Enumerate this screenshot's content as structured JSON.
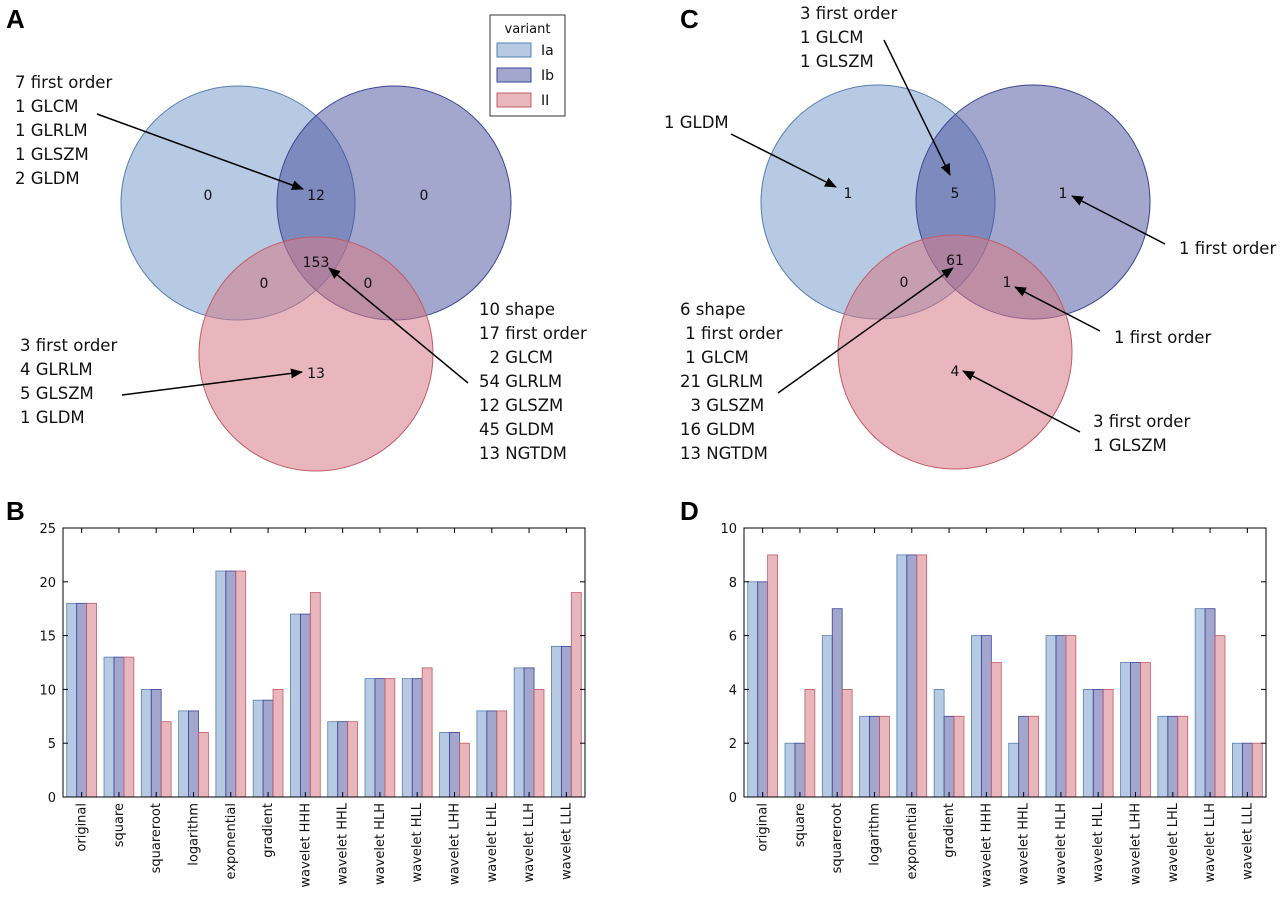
{
  "colors": {
    "Ia": "#7b9fcc",
    "Ib": "#3e4596",
    "II": "#d67a85"
  },
  "legend": {
    "title": "variant",
    "items": [
      "Ia",
      "Ib",
      "II"
    ]
  },
  "venn_A": {
    "letter": "A",
    "counts": {
      "Ia_only": "0",
      "Ib_only": "0",
      "Ia_Ib": "12",
      "Ia_II": "0",
      "Ib_II": "0",
      "all": "153",
      "II_only": "13"
    },
    "annotations": {
      "Ia_Ib": [
        "7 first order",
        "1 GLCM",
        "1 GLRLM",
        "1 GLSZM",
        "2 GLDM"
      ],
      "II_only": [
        "3 first order",
        "4 GLRLM",
        "5 GLSZM",
        "1 GLDM"
      ],
      "all": [
        "10 shape",
        "17 first order",
        "  2 GLCM",
        "54 GLRLM",
        "12 GLSZM",
        "45 GLDM",
        "13 NGTDM"
      ]
    }
  },
  "venn_C": {
    "letter": "C",
    "counts": {
      "Ia_only": "1",
      "Ib_only": "1",
      "Ia_Ib": "5",
      "Ia_II": "0",
      "Ib_II": "1",
      "all": "61",
      "II_only": "4"
    },
    "annotations": {
      "Ia_Ib": [
        "3 first order",
        "1 GLCM",
        "1 GLSZM"
      ],
      "Ia_only": [
        "1 GLDM"
      ],
      "Ib_only": [
        "1 first order"
      ],
      "Ib_II": [
        "1 first order"
      ],
      "II_only": [
        "3 first order",
        "1 GLSZM"
      ],
      "all": [
        "6 shape",
        " 1 first order",
        " 1 GLCM",
        "21 GLRLM",
        "  3 GLSZM",
        "16 GLDM",
        "13 NGTDM"
      ]
    }
  },
  "chart_data": [
    {
      "panel": "B",
      "type": "bar",
      "categories": [
        "original",
        "square",
        "squareroot",
        "logarithm",
        "exponential",
        "gradient",
        "wavelet HHH",
        "wavelet HHL",
        "wavelet HLH",
        "wavelet HLL",
        "wavelet LHH",
        "wavelet LHL",
        "wavelet LLH",
        "wavelet LLL"
      ],
      "series": [
        {
          "name": "Ia",
          "values": [
            18,
            13,
            10,
            8,
            21,
            9,
            17,
            7,
            11,
            11,
            6,
            8,
            12,
            14
          ]
        },
        {
          "name": "Ib",
          "values": [
            18,
            13,
            10,
            8,
            21,
            9,
            17,
            7,
            11,
            11,
            6,
            8,
            12,
            14
          ]
        },
        {
          "name": "II",
          "values": [
            18,
            13,
            7,
            6,
            21,
            10,
            19,
            7,
            11,
            12,
            5,
            8,
            10,
            19
          ]
        }
      ],
      "ylim": [
        0,
        25
      ],
      "yticks": [
        0,
        5,
        10,
        15,
        20,
        25
      ]
    },
    {
      "panel": "D",
      "type": "bar",
      "categories": [
        "original",
        "square",
        "squareroot",
        "logarithm",
        "exponential",
        "gradient",
        "wavelet HHH",
        "wavelet HHL",
        "wavelet HLH",
        "wavelet HLL",
        "wavelet LHH",
        "wavelet LHL",
        "wavelet LLH",
        "wavelet LLL"
      ],
      "series": [
        {
          "name": "Ia",
          "values": [
            8,
            2,
            6,
            3,
            9,
            4,
            6,
            2,
            6,
            4,
            5,
            3,
            7,
            2
          ]
        },
        {
          "name": "Ib",
          "values": [
            8,
            2,
            7,
            3,
            9,
            3,
            6,
            3,
            6,
            4,
            5,
            3,
            7,
            2
          ]
        },
        {
          "name": "II",
          "values": [
            9,
            4,
            4,
            3,
            9,
            3,
            5,
            3,
            6,
            4,
            5,
            3,
            6,
            2
          ]
        }
      ],
      "ylim": [
        0,
        10
      ],
      "yticks": [
        0,
        2,
        4,
        6,
        8,
        10
      ]
    }
  ]
}
